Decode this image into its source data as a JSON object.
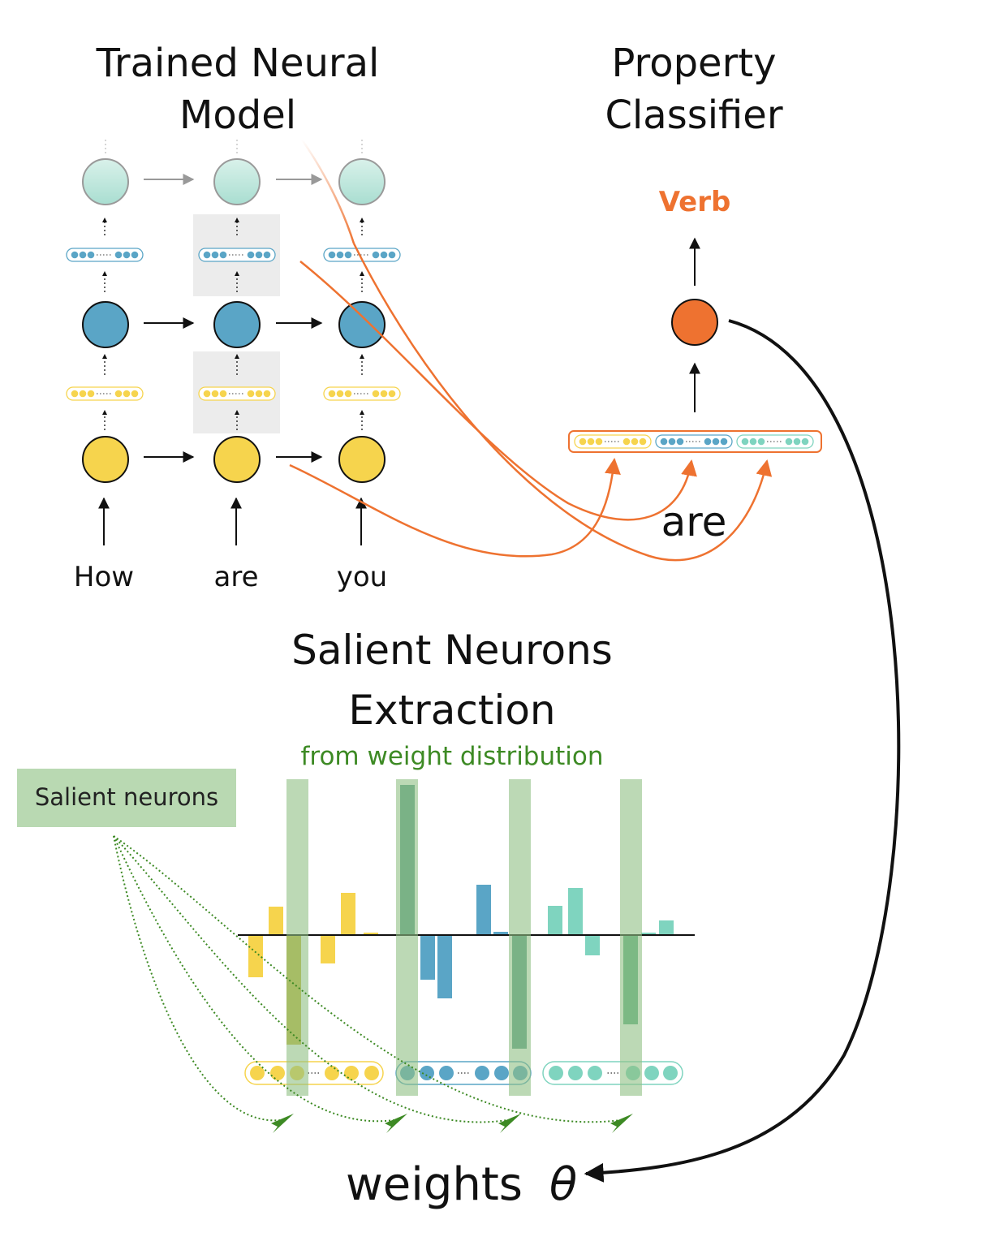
{
  "titles": {
    "model_line1": "Trained Neural",
    "model_line2": "Model",
    "classifier_line1": "Property",
    "classifier_line2": "Classifier",
    "extraction_line1": "Salient Neurons",
    "extraction_line2": "Extraction",
    "extraction_subtitle": "from weight distribution"
  },
  "tokens": [
    "How",
    "are",
    "you"
  ],
  "classifier": {
    "output_label": "Verb",
    "input_word": "are"
  },
  "salient_box_label": "Salient neurons",
  "weights_label": "weights",
  "weights_symbol": "θ",
  "colors": {
    "yellow": "#f6d44d",
    "blue": "#5aa5c6",
    "teal": "#a9ded1",
    "teal_weight": "#7fd4bf",
    "orange": "#ee7230",
    "green_text": "#3d8a24",
    "salient_band": "#b9d9b2"
  }
}
